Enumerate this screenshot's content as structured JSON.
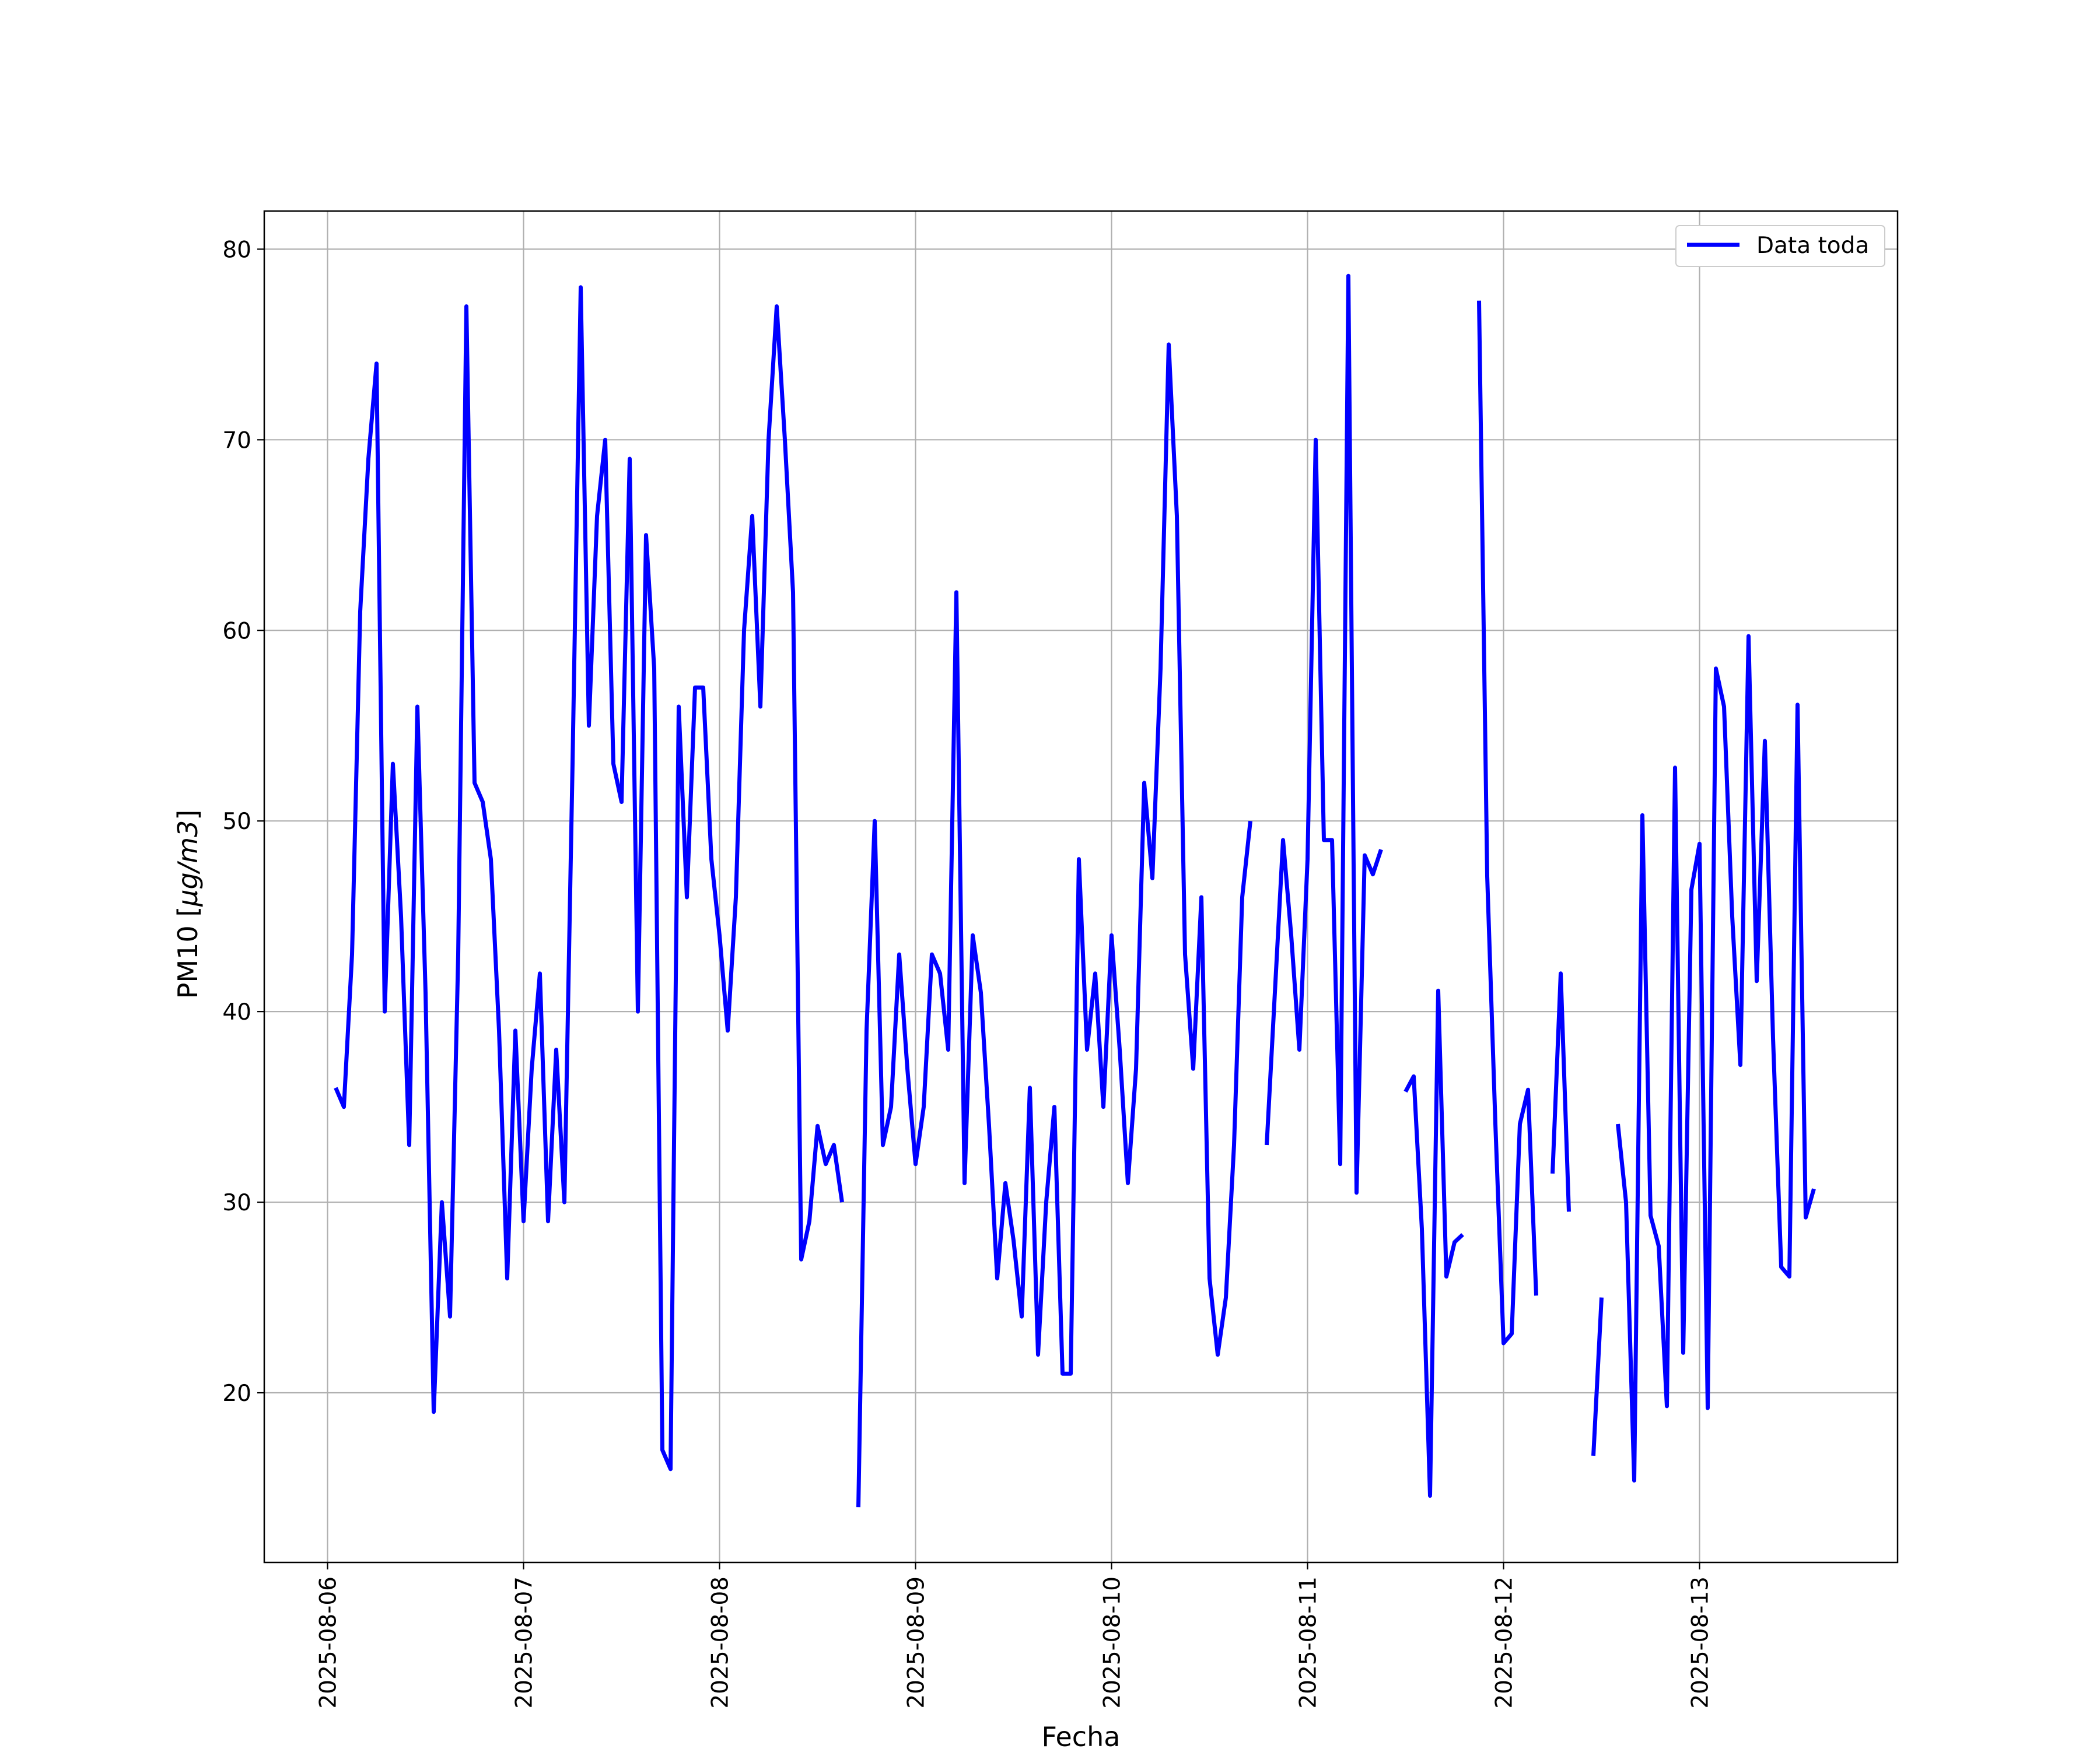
{
  "chart_data": {
    "type": "line",
    "xlabel": "Fecha",
    "ylabel_text": "PM10 [",
    "ylabel_unit": "μg/m3",
    "ylabel_close": "]",
    "ylim": [
      11.1,
      82.0
    ],
    "xlim": [
      "2025-08-05T16:15",
      "2025-08-14T00:15"
    ],
    "y_ticks": [
      20,
      30,
      40,
      50,
      60,
      70,
      80
    ],
    "x_ticks": [
      "2025-08-06",
      "2025-08-07",
      "2025-08-08",
      "2025-08-09",
      "2025-08-10",
      "2025-08-11",
      "2025-08-12",
      "2025-08-13"
    ],
    "grid": true,
    "legend_position": "top-right",
    "series": [
      {
        "name": "Data toda",
        "color": "#0000ff",
        "points": [
          [
            "2025-08-06T01:00",
            36
          ],
          [
            "2025-08-06T02:00",
            35
          ],
          [
            "2025-08-06T03:00",
            43
          ],
          [
            "2025-08-06T04:00",
            61
          ],
          [
            "2025-08-06T05:00",
            69
          ],
          [
            "2025-08-06T06:00",
            74
          ],
          [
            "2025-08-06T07:00",
            40
          ],
          [
            "2025-08-06T08:00",
            53
          ],
          [
            "2025-08-06T09:00",
            45
          ],
          [
            "2025-08-06T10:00",
            33
          ],
          [
            "2025-08-06T11:00",
            56
          ],
          [
            "2025-08-06T12:00",
            41
          ],
          [
            "2025-08-06T13:00",
            19
          ],
          [
            "2025-08-06T14:00",
            30
          ],
          [
            "2025-08-06T15:00",
            24
          ],
          [
            "2025-08-06T16:00",
            43
          ],
          [
            "2025-08-06T17:00",
            77
          ],
          [
            "2025-08-06T18:00",
            52
          ],
          [
            "2025-08-06T19:00",
            51
          ],
          [
            "2025-08-06T20:00",
            48
          ],
          [
            "2025-08-06T21:00",
            39
          ],
          [
            "2025-08-06T22:00",
            26
          ],
          [
            "2025-08-06T23:00",
            39
          ],
          [
            "2025-08-07T00:00",
            29
          ],
          [
            "2025-08-07T01:00",
            37
          ],
          [
            "2025-08-07T02:00",
            42
          ],
          [
            "2025-08-07T03:00",
            29
          ],
          [
            "2025-08-07T04:00",
            38
          ],
          [
            "2025-08-07T05:00",
            30
          ],
          [
            "2025-08-07T06:00",
            53
          ],
          [
            "2025-08-07T07:00",
            78
          ],
          [
            "2025-08-07T08:00",
            55
          ],
          [
            "2025-08-07T09:00",
            66
          ],
          [
            "2025-08-07T10:00",
            70
          ],
          [
            "2025-08-07T11:00",
            53
          ],
          [
            "2025-08-07T12:00",
            51
          ],
          [
            "2025-08-07T13:00",
            69
          ],
          [
            "2025-08-07T14:00",
            40
          ],
          [
            "2025-08-07T15:00",
            65
          ],
          [
            "2025-08-07T16:00",
            58
          ],
          [
            "2025-08-07T17:00",
            17
          ],
          [
            "2025-08-07T18:00",
            16
          ],
          [
            "2025-08-07T19:00",
            56
          ],
          [
            "2025-08-07T20:00",
            46
          ],
          [
            "2025-08-07T21:00",
            57
          ],
          [
            "2025-08-07T22:00",
            57
          ],
          [
            "2025-08-07T23:00",
            48
          ],
          [
            "2025-08-08T00:00",
            44
          ],
          [
            "2025-08-08T01:00",
            39
          ],
          [
            "2025-08-08T02:00",
            46
          ],
          [
            "2025-08-08T03:00",
            60
          ],
          [
            "2025-08-08T04:00",
            66
          ],
          [
            "2025-08-08T05:00",
            56
          ],
          [
            "2025-08-08T06:00",
            70
          ],
          [
            "2025-08-08T07:00",
            77
          ],
          [
            "2025-08-08T08:00",
            70
          ],
          [
            "2025-08-08T09:00",
            62
          ],
          [
            "2025-08-08T10:00",
            27
          ],
          [
            "2025-08-08T11:00",
            29
          ],
          [
            "2025-08-08T12:00",
            34
          ],
          [
            "2025-08-08T13:00",
            32
          ],
          [
            "2025-08-08T14:00",
            33
          ],
          [
            "2025-08-08T15:00",
            30
          ],
          null,
          [
            "2025-08-08T17:00",
            14
          ],
          [
            "2025-08-08T18:00",
            39
          ],
          [
            "2025-08-08T19:00",
            50
          ],
          [
            "2025-08-08T20:00",
            33
          ],
          [
            "2025-08-08T21:00",
            35
          ],
          [
            "2025-08-08T22:00",
            43
          ],
          [
            "2025-08-08T23:00",
            37
          ],
          [
            "2025-08-09T00:00",
            32
          ],
          [
            "2025-08-09T01:00",
            35
          ],
          [
            "2025-08-09T02:00",
            43
          ],
          [
            "2025-08-09T03:00",
            42
          ],
          [
            "2025-08-09T04:00",
            38
          ],
          [
            "2025-08-09T05:00",
            62
          ],
          [
            "2025-08-09T06:00",
            31
          ],
          [
            "2025-08-09T07:00",
            44
          ],
          [
            "2025-08-09T08:00",
            41
          ],
          [
            "2025-08-09T09:00",
            34
          ],
          [
            "2025-08-09T10:00",
            26
          ],
          [
            "2025-08-09T11:00",
            31
          ],
          [
            "2025-08-09T12:00",
            28
          ],
          [
            "2025-08-09T13:00",
            24
          ],
          [
            "2025-08-09T14:00",
            36
          ],
          [
            "2025-08-09T15:00",
            22
          ],
          [
            "2025-08-09T16:00",
            30
          ],
          [
            "2025-08-09T17:00",
            35
          ],
          [
            "2025-08-09T18:00",
            21
          ],
          [
            "2025-08-09T19:00",
            21
          ],
          [
            "2025-08-09T20:00",
            48
          ],
          [
            "2025-08-09T21:00",
            38
          ],
          [
            "2025-08-09T22:00",
            42
          ],
          [
            "2025-08-09T23:00",
            35
          ],
          [
            "2025-08-10T00:00",
            44
          ],
          [
            "2025-08-10T01:00",
            38
          ],
          [
            "2025-08-10T02:00",
            31
          ],
          [
            "2025-08-10T03:00",
            37
          ],
          [
            "2025-08-10T04:00",
            52
          ],
          [
            "2025-08-10T05:00",
            47
          ],
          [
            "2025-08-10T06:00",
            58
          ],
          [
            "2025-08-10T07:00",
            75
          ],
          [
            "2025-08-10T08:00",
            66
          ],
          [
            "2025-08-10T09:00",
            43
          ],
          [
            "2025-08-10T10:00",
            37
          ],
          [
            "2025-08-10T11:00",
            46
          ],
          [
            "2025-08-10T12:00",
            26
          ],
          [
            "2025-08-10T13:00",
            22
          ],
          [
            "2025-08-10T14:00",
            25
          ],
          [
            "2025-08-10T15:00",
            33
          ],
          [
            "2025-08-10T16:00",
            46
          ],
          [
            "2025-08-10T17:00",
            50
          ],
          null,
          [
            "2025-08-10T19:00",
            33
          ],
          [
            "2025-08-10T20:00",
            41
          ],
          [
            "2025-08-10T21:00",
            49
          ],
          [
            "2025-08-10T22:00",
            44
          ],
          [
            "2025-08-10T23:00",
            38
          ],
          [
            "2025-08-11T00:00",
            48
          ],
          [
            "2025-08-11T01:00",
            70
          ],
          [
            "2025-08-11T02:00",
            49
          ],
          [
            "2025-08-11T03:00",
            49
          ],
          [
            "2025-08-11T04:00",
            32
          ],
          [
            "2025-08-11T05:00",
            78.6
          ],
          [
            "2025-08-11T06:00",
            30.5
          ],
          [
            "2025-08-11T07:00",
            48.2
          ],
          [
            "2025-08-11T08:00",
            47.2
          ],
          [
            "2025-08-11T09:00",
            48.5
          ],
          null,
          [
            "2025-08-11T12:00",
            35.8
          ],
          [
            "2025-08-11T13:00",
            36.6
          ],
          [
            "2025-08-11T14:00",
            28.6
          ],
          [
            "2025-08-11T15:00",
            14.6
          ],
          [
            "2025-08-11T16:00",
            41.1
          ],
          [
            "2025-08-11T17:00",
            26.1
          ],
          [
            "2025-08-11T18:00",
            27.9
          ],
          [
            "2025-08-11T19:00",
            28.3
          ],
          null,
          [
            "2025-08-11T21:00",
            77.3
          ],
          [
            "2025-08-11T22:00",
            47.1
          ],
          [
            "2025-08-11T23:00",
            34.1
          ],
          [
            "2025-08-12T00:00",
            22.6
          ],
          [
            "2025-08-12T01:00",
            23.1
          ],
          [
            "2025-08-12T02:00",
            34.1
          ],
          [
            "2025-08-12T03:00",
            35.9
          ],
          [
            "2025-08-12T04:00",
            25.1
          ],
          null,
          [
            "2025-08-12T06:00",
            31.5
          ],
          [
            "2025-08-12T07:00",
            42
          ],
          [
            "2025-08-12T08:00",
            29.5
          ],
          null,
          [
            "2025-08-12T11:00",
            16.7
          ],
          [
            "2025-08-12T12:00",
            25
          ],
          null,
          [
            "2025-08-12T14:00",
            34.1
          ],
          [
            "2025-08-12T15:00",
            30
          ],
          [
            "2025-08-12T16:00",
            15.4
          ],
          [
            "2025-08-12T17:00",
            50.3
          ],
          [
            "2025-08-12T18:00",
            29.3
          ],
          [
            "2025-08-12T19:00",
            27.7
          ],
          [
            "2025-08-12T20:00",
            19.3
          ],
          [
            "2025-08-12T21:00",
            52.8
          ],
          [
            "2025-08-12T22:00",
            22.1
          ],
          [
            "2025-08-12T23:00",
            46.4
          ],
          [
            "2025-08-13T00:00",
            48.8
          ],
          [
            "2025-08-13T01:00",
            19.2
          ],
          [
            "2025-08-13T02:00",
            58
          ],
          [
            "2025-08-13T03:00",
            56
          ],
          [
            "2025-08-13T04:00",
            45
          ],
          [
            "2025-08-13T05:00",
            37.2
          ],
          [
            "2025-08-13T06:00",
            59.7
          ],
          [
            "2025-08-13T07:00",
            41.6
          ],
          [
            "2025-08-13T08:00",
            54.2
          ],
          [
            "2025-08-13T09:00",
            38.6
          ],
          [
            "2025-08-13T10:00",
            26.6
          ],
          [
            "2025-08-13T11:00",
            26.1
          ],
          [
            "2025-08-13T12:00",
            56.1
          ],
          [
            "2025-08-13T13:00",
            29.2
          ],
          [
            "2025-08-13T14:00",
            30.7
          ]
        ]
      }
    ]
  }
}
